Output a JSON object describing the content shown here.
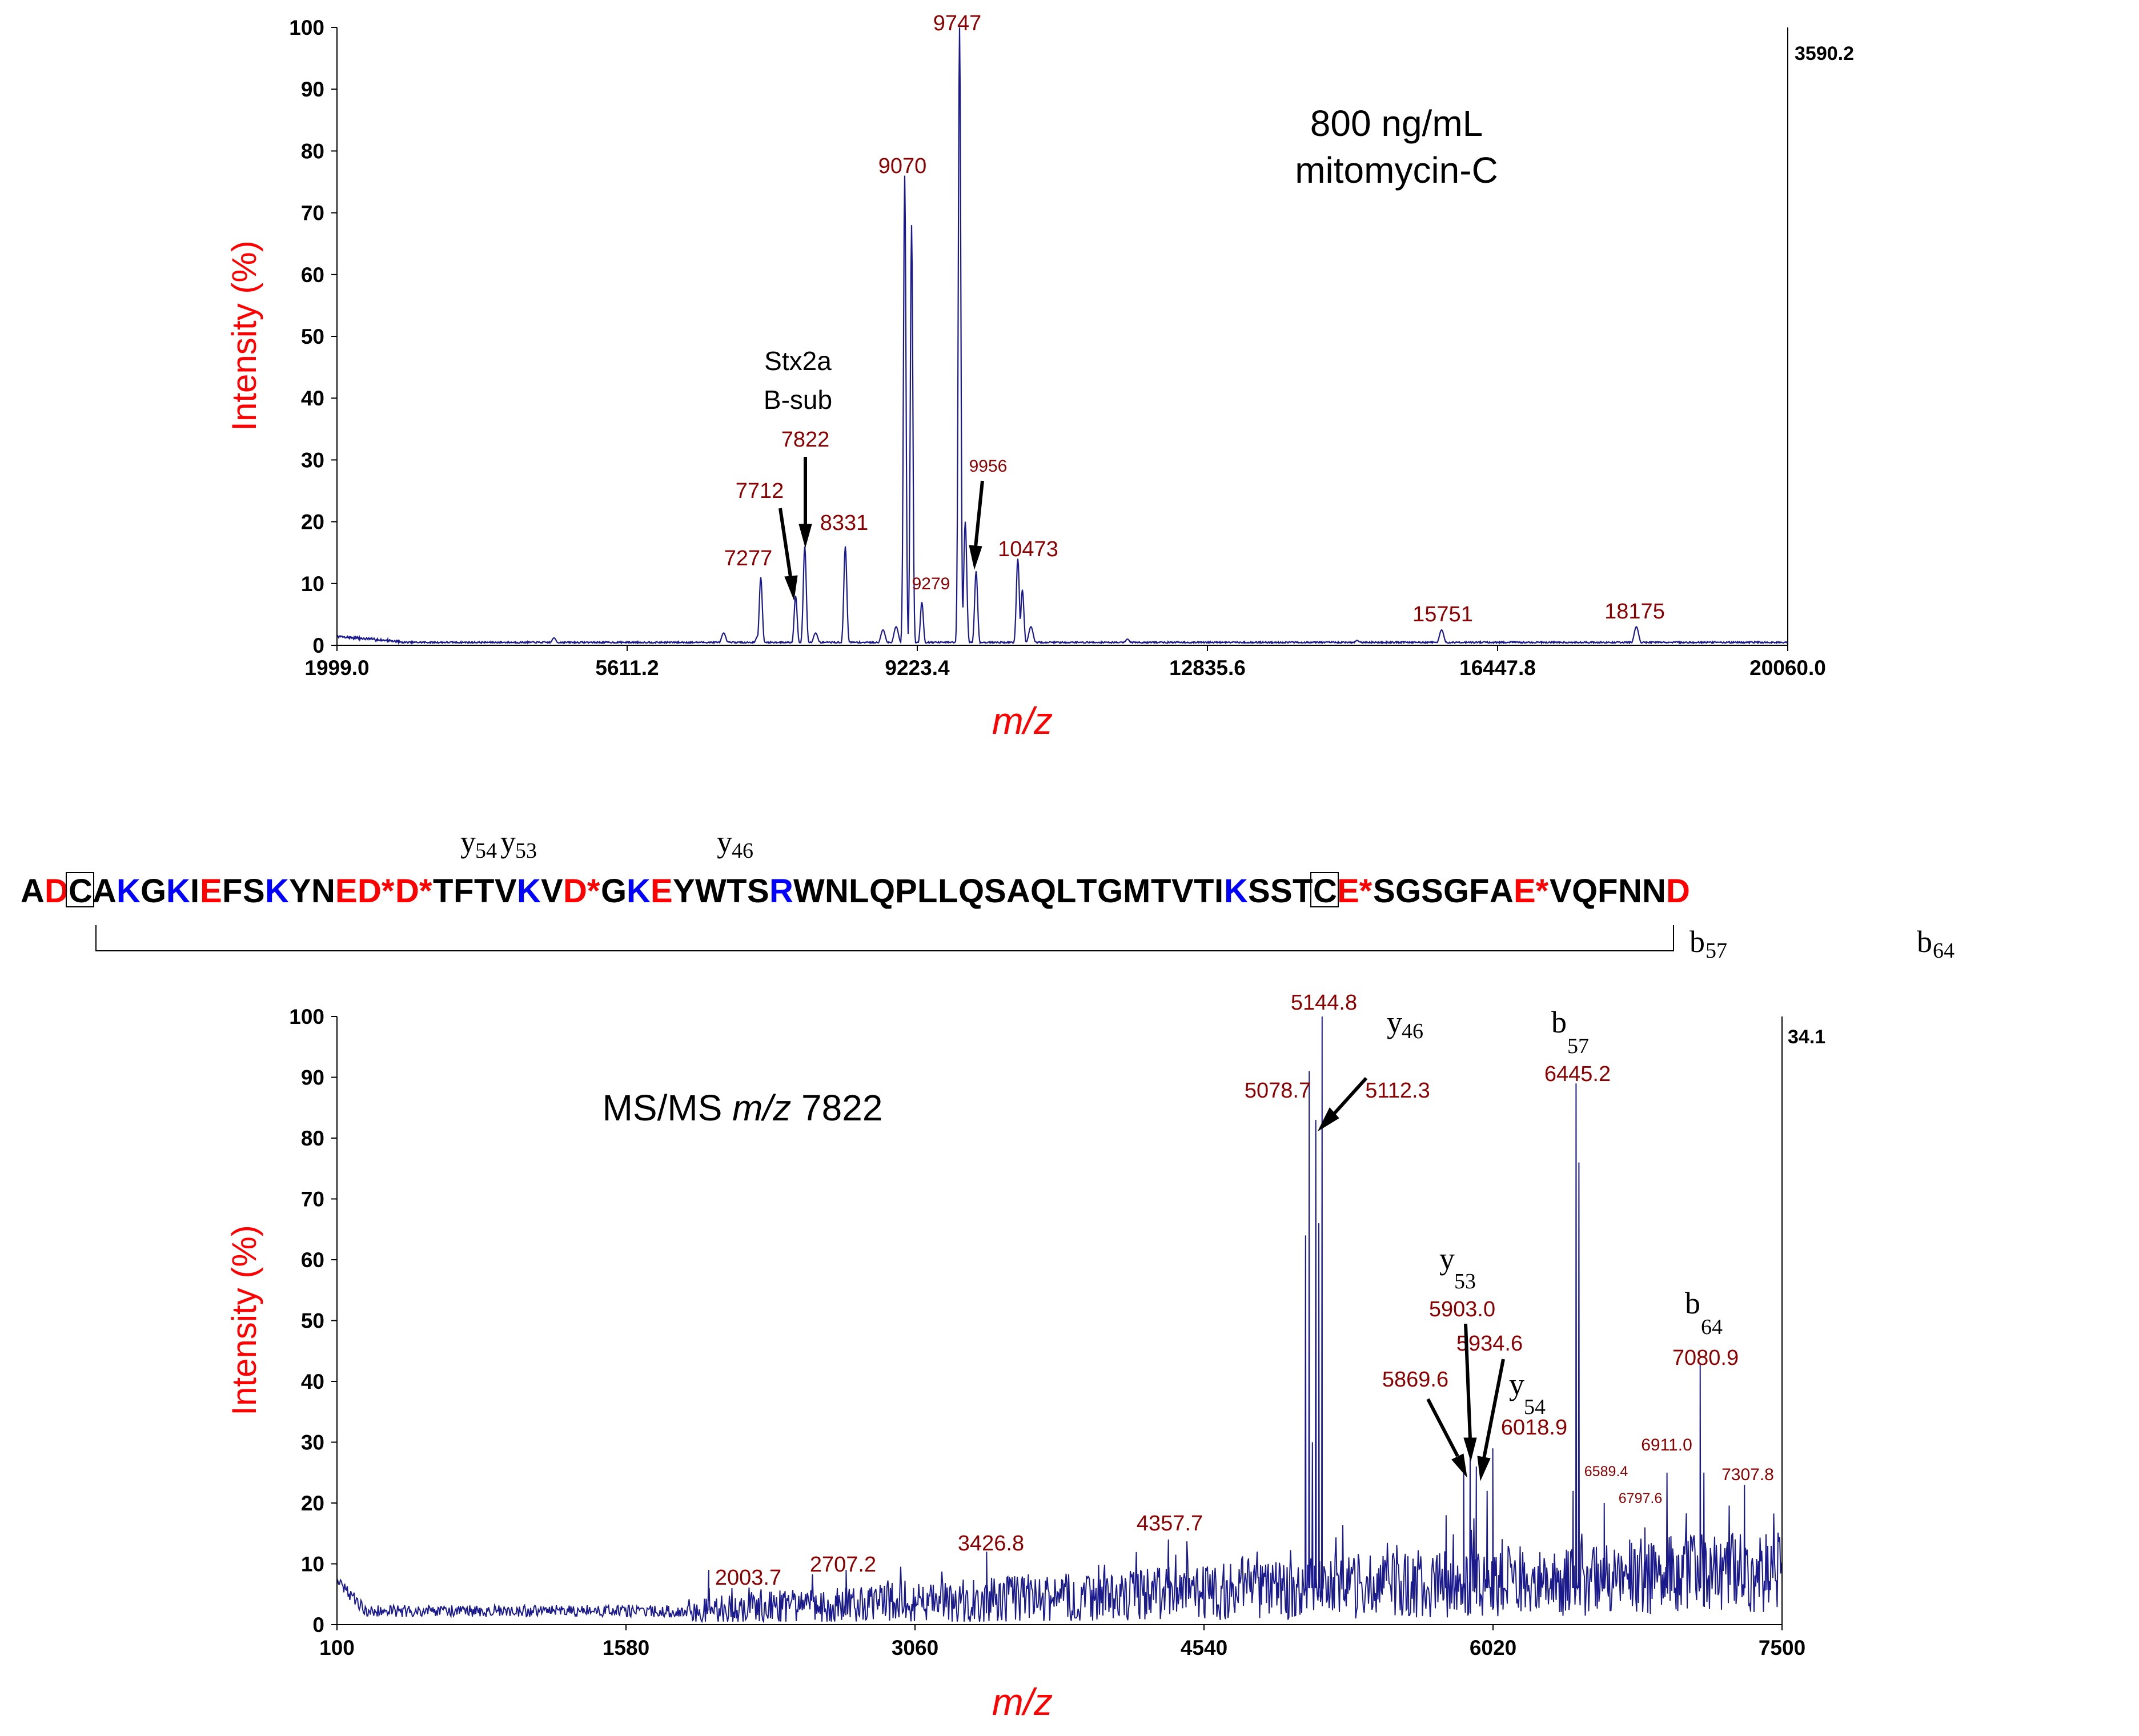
{
  "colors": {
    "trace": "#1a1a8c",
    "peak_label": "#8b0000",
    "axis_title": "#ff0000",
    "acidic": "#ff0000",
    "basic": "#0000ff",
    "neutral": "#000000"
  },
  "chart_data": [
    {
      "type": "line",
      "title": "800 ng/mL mitomycin-C",
      "annotation_lines": [
        "800 ng/mL",
        "mitomycin-C"
      ],
      "species_label_lines": [
        "Stx2a",
        "B-sub"
      ],
      "xlabel": "m/z",
      "ylabel": "Intensity (%)",
      "xlim": [
        1999.0,
        20060.0
      ],
      "ylim": [
        0,
        100
      ],
      "x_ticks": [
        "1999.0",
        "5611.2",
        "9223.4",
        "12835.6",
        "16447.8",
        "20060.0"
      ],
      "y_ticks": [
        "0",
        "10",
        "20",
        "30",
        "40",
        "50",
        "60",
        "70",
        "80",
        "90",
        "100"
      ],
      "max_intensity_label": "3590.2",
      "peaks": [
        {
          "mz": 7277,
          "intensity": 11,
          "label": "7277"
        },
        {
          "mz": 7712,
          "intensity": 8,
          "label": "7712"
        },
        {
          "mz": 7822,
          "intensity": 16,
          "label": "7822"
        },
        {
          "mz": 8331,
          "intensity": 16,
          "label": "8331"
        },
        {
          "mz": 9070,
          "intensity": 76,
          "label": "9070"
        },
        {
          "mz": 9279,
          "intensity": 7,
          "label": "9279"
        },
        {
          "mz": 9747,
          "intensity": 100,
          "label": "9747"
        },
        {
          "mz": 9956,
          "intensity": 12,
          "label": "9956"
        },
        {
          "mz": 10473,
          "intensity": 14,
          "label": "10473"
        },
        {
          "mz": 15751,
          "intensity": 2.5,
          "label": "15751"
        },
        {
          "mz": 18175,
          "intensity": 3,
          "label": "18175"
        }
      ]
    },
    {
      "type": "line",
      "title": "MS/MS m/z 7822",
      "title_parts": {
        "prefix": "MS/MS ",
        "italic": "m/z",
        "suffix": " 7822"
      },
      "xlabel": "m/z",
      "ylabel": "Intensity (%)",
      "xlim": [
        100,
        7500
      ],
      "ylim": [
        0,
        100
      ],
      "x_ticks": [
        "100",
        "1580",
        "3060",
        "4540",
        "6020",
        "7500"
      ],
      "y_ticks": [
        "0",
        "10",
        "20",
        "30",
        "40",
        "50",
        "60",
        "70",
        "80",
        "90",
        "100"
      ],
      "max_intensity_label": "34.1",
      "peaks": [
        {
          "mz": 2003.7,
          "intensity": 9,
          "label": "2003.7"
        },
        {
          "mz": 2707.2,
          "intensity": 9,
          "label": "2707.2"
        },
        {
          "mz": 3426.8,
          "intensity": 12,
          "label": "3426.8"
        },
        {
          "mz": 4357.7,
          "intensity": 14,
          "label": "4357.7"
        },
        {
          "mz": 5078.7,
          "intensity": 91,
          "label": "5078.7"
        },
        {
          "mz": 5112.3,
          "intensity": 83,
          "label": "5112.3"
        },
        {
          "mz": 5144.8,
          "intensity": 100,
          "label": "5144.8"
        },
        {
          "mz": 5869.6,
          "intensity": 27,
          "label": "5869.6"
        },
        {
          "mz": 5903.0,
          "intensity": 29,
          "label": "5903.0"
        },
        {
          "mz": 5934.6,
          "intensity": 26,
          "label": "5934.6"
        },
        {
          "mz": 6018.9,
          "intensity": 29,
          "label": "6018.9"
        },
        {
          "mz": 6445.2,
          "intensity": 89,
          "label": "6445.2"
        },
        {
          "mz": 6589.4,
          "intensity": 20,
          "label": "6589.4"
        },
        {
          "mz": 6797.6,
          "intensity": 16,
          "label": "6797.6"
        },
        {
          "mz": 6911.0,
          "intensity": 25,
          "label": "6911.0"
        },
        {
          "mz": 7080.9,
          "intensity": 43,
          "label": "7080.9"
        },
        {
          "mz": 7307.8,
          "intensity": 23,
          "label": "7307.8"
        }
      ],
      "fragment_labels": [
        {
          "base": "y",
          "sub": "46"
        },
        {
          "base": "b",
          "sub": "57"
        },
        {
          "base": "y",
          "sub": "53"
        },
        {
          "base": "b",
          "sub": "64"
        },
        {
          "base": "y",
          "sub": "54"
        }
      ]
    }
  ],
  "sequence": {
    "residues": [
      {
        "aa": "A",
        "cls": "n"
      },
      {
        "aa": "D",
        "cls": "a"
      },
      {
        "aa": "C",
        "cls": "n",
        "box": true
      },
      {
        "aa": "A",
        "cls": "n"
      },
      {
        "aa": "K",
        "cls": "b"
      },
      {
        "aa": "G",
        "cls": "n"
      },
      {
        "aa": "K",
        "cls": "b"
      },
      {
        "aa": "I",
        "cls": "n"
      },
      {
        "aa": "E",
        "cls": "a"
      },
      {
        "aa": "F",
        "cls": "n"
      },
      {
        "aa": "S",
        "cls": "n"
      },
      {
        "aa": "K",
        "cls": "b"
      },
      {
        "aa": "Y",
        "cls": "n"
      },
      {
        "aa": "N",
        "cls": "n"
      },
      {
        "aa": "E",
        "cls": "a"
      },
      {
        "aa": "D*",
        "cls": "a"
      },
      {
        "aa": "D*",
        "cls": "a"
      },
      {
        "aa": "T",
        "cls": "n"
      },
      {
        "aa": "F",
        "cls": "n"
      },
      {
        "aa": "T",
        "cls": "n"
      },
      {
        "aa": "V",
        "cls": "n"
      },
      {
        "aa": "K",
        "cls": "b"
      },
      {
        "aa": "V",
        "cls": "n"
      },
      {
        "aa": "D*",
        "cls": "a"
      },
      {
        "aa": "G",
        "cls": "n"
      },
      {
        "aa": "K",
        "cls": "b"
      },
      {
        "aa": "E",
        "cls": "a"
      },
      {
        "aa": "Y",
        "cls": "n"
      },
      {
        "aa": "W",
        "cls": "n"
      },
      {
        "aa": "T",
        "cls": "n"
      },
      {
        "aa": "S",
        "cls": "n"
      },
      {
        "aa": "R",
        "cls": "b"
      },
      {
        "aa": "W",
        "cls": "n"
      },
      {
        "aa": "N",
        "cls": "n"
      },
      {
        "aa": "L",
        "cls": "n"
      },
      {
        "aa": "Q",
        "cls": "n"
      },
      {
        "aa": "P",
        "cls": "n"
      },
      {
        "aa": "L",
        "cls": "n"
      },
      {
        "aa": "L",
        "cls": "n"
      },
      {
        "aa": "Q",
        "cls": "n"
      },
      {
        "aa": "S",
        "cls": "n"
      },
      {
        "aa": "A",
        "cls": "n"
      },
      {
        "aa": "Q",
        "cls": "n"
      },
      {
        "aa": "L",
        "cls": "n"
      },
      {
        "aa": "T",
        "cls": "n"
      },
      {
        "aa": "G",
        "cls": "n"
      },
      {
        "aa": "M",
        "cls": "n"
      },
      {
        "aa": "T",
        "cls": "n"
      },
      {
        "aa": "V",
        "cls": "n"
      },
      {
        "aa": "T",
        "cls": "n"
      },
      {
        "aa": "I",
        "cls": "n"
      },
      {
        "aa": "K",
        "cls": "b"
      },
      {
        "aa": "S",
        "cls": "n"
      },
      {
        "aa": "S",
        "cls": "n"
      },
      {
        "aa": "T",
        "cls": "n"
      },
      {
        "aa": "C",
        "cls": "n",
        "box": true
      },
      {
        "aa": "E*",
        "cls": "a"
      },
      {
        "aa": "S",
        "cls": "n"
      },
      {
        "aa": "G",
        "cls": "n"
      },
      {
        "aa": "S",
        "cls": "n"
      },
      {
        "aa": "G",
        "cls": "n"
      },
      {
        "aa": "F",
        "cls": "n"
      },
      {
        "aa": "A",
        "cls": "n"
      },
      {
        "aa": "E*",
        "cls": "a"
      },
      {
        "aa": "V",
        "cls": "n"
      },
      {
        "aa": "Q",
        "cls": "n"
      },
      {
        "aa": "F",
        "cls": "n"
      },
      {
        "aa": "N",
        "cls": "n"
      },
      {
        "aa": "N",
        "cls": "n"
      },
      {
        "aa": "D",
        "cls": "a"
      }
    ],
    "cleavage_labels": [
      {
        "base": "y",
        "sub": "54",
        "position": "above"
      },
      {
        "base": "y",
        "sub": "53",
        "position": "above"
      },
      {
        "base": "y",
        "sub": "46",
        "position": "above"
      },
      {
        "base": "b",
        "sub": "57",
        "position": "below"
      },
      {
        "base": "b",
        "sub": "64",
        "position": "below"
      }
    ]
  }
}
